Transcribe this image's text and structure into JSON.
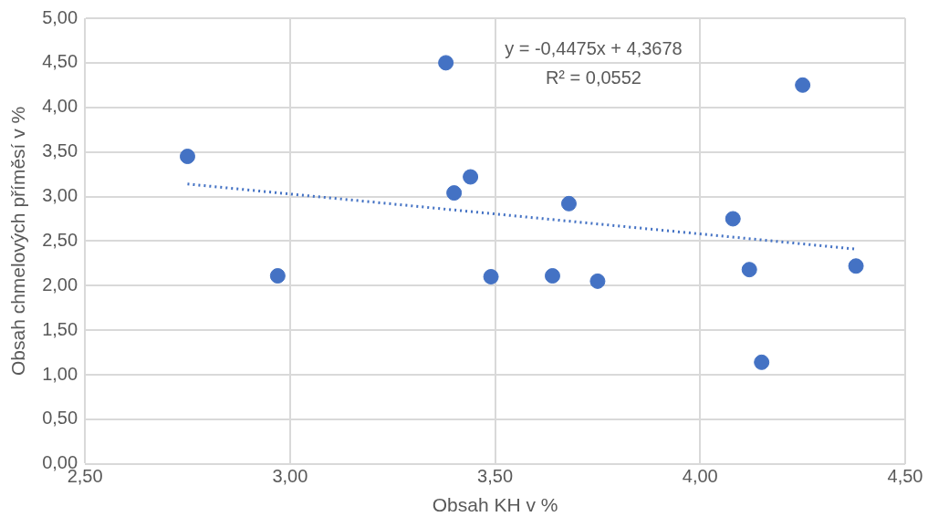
{
  "chart_data": {
    "type": "scatter",
    "xlabel": "Obsah KH v %",
    "ylabel": "Obsah chmelových příměsí v %",
    "annotations": [
      "y = -0,4475x + 4,3678",
      "R² = 0,0552"
    ],
    "series": [
      {
        "type": "scatter",
        "color": "#4472c4",
        "x": [
          2.75,
          2.97,
          3.38,
          3.4,
          3.44,
          3.49,
          3.64,
          3.68,
          3.75,
          4.08,
          4.12,
          4.15,
          4.25,
          4.38
        ],
        "values": [
          3.45,
          2.11,
          4.5,
          3.04,
          3.22,
          2.1,
          2.11,
          2.92,
          2.05,
          2.75,
          2.18,
          1.14,
          4.25,
          2.22
        ],
        "marker": "circle"
      },
      {
        "type": "line",
        "color": "#4472c4",
        "x": [
          2.75,
          4.38
        ],
        "values": [
          3.14,
          2.41
        ],
        "line_style": "dotted",
        "marker": "none"
      }
    ],
    "xlim": [
      2.5,
      4.5
    ],
    "xticks": [
      {
        "value": 2.5,
        "label": "2,50"
      },
      {
        "value": 3,
        "label": "3,00"
      },
      {
        "value": 3.5,
        "label": "3,50"
      },
      {
        "value": 4,
        "label": "4,00"
      },
      {
        "value": 4.5,
        "label": "4,50"
      }
    ],
    "ylim": [
      0,
      5
    ],
    "yticks": [
      {
        "value": 0,
        "label": "0,00"
      },
      {
        "value": 0.5,
        "label": "0,50"
      },
      {
        "value": 1,
        "label": "1,00"
      },
      {
        "value": 1.5,
        "label": "1,50"
      },
      {
        "value": 2,
        "label": "2,00"
      },
      {
        "value": 2.5,
        "label": "2,50"
      },
      {
        "value": 3,
        "label": "3,00"
      },
      {
        "value": 3.5,
        "label": "3,50"
      },
      {
        "value": 4,
        "label": "4,00"
      },
      {
        "value": 4.5,
        "label": "4,50"
      },
      {
        "value": 5,
        "label": "5,00"
      }
    ],
    "grid": true,
    "legend": false
  }
}
